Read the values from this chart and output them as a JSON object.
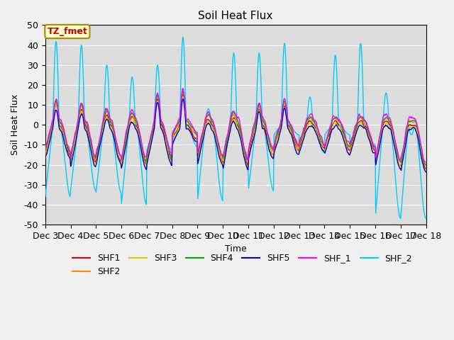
{
  "title": "Soil Heat Flux",
  "xlabel": "Time",
  "ylabel": "Soil Heat Flux",
  "ylim": [
    -50,
    50
  ],
  "yticks": [
    -50,
    -40,
    -30,
    -20,
    -10,
    0,
    10,
    20,
    30,
    40,
    50
  ],
  "xtick_labels": [
    "Dec 3",
    "Dec 4",
    "Dec 5",
    "Dec 6",
    "Dec 7",
    "Dec 8",
    "Dec 9",
    "Dec 10",
    "Dec 11",
    "Dec 12",
    "Dec 13",
    "Dec 14",
    "Dec 15",
    "Dec 16",
    "Dec 17",
    "Dec 18"
  ],
  "colors": {
    "SHF1": "#dd0000",
    "SHF2": "#ff8800",
    "SHF3": "#cccc00",
    "SHF4": "#00aa00",
    "SHF5": "#0000cc",
    "SHF_1": "#ff00ff",
    "SHF_2": "#00ccff"
  },
  "annotation_text": "TZ_fmet",
  "annotation_color": "#cc0000",
  "annotation_bg": "#ffffcc",
  "plot_bg_color": "#dcdcdc",
  "grid_color": "#ffffff",
  "fig_bg_color": "#f0f0f0",
  "title_fontsize": 11,
  "axis_fontsize": 9,
  "legend_fontsize": 9
}
